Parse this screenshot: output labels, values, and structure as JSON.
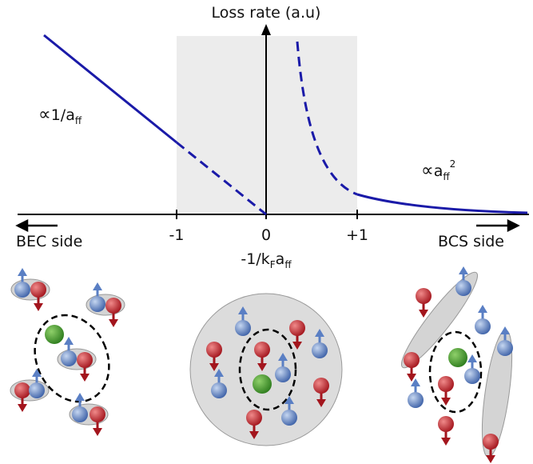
{
  "axis": {
    "y_label": "Loss rate (a.u)",
    "x_label": {
      "part1": "-1/k",
      "sub1": "F",
      "part2": "a",
      "sub2": "ff"
    },
    "ticks": [
      "-1",
      "0",
      "+1"
    ]
  },
  "annotations": {
    "left": {
      "symbol": "∝",
      "text": "1/a",
      "sub": "ff"
    },
    "right": {
      "symbol": "∝",
      "text": "a",
      "sub": "ff",
      "sup": "2"
    }
  },
  "sides": [
    "BEC side",
    "BCS side"
  ]
}
